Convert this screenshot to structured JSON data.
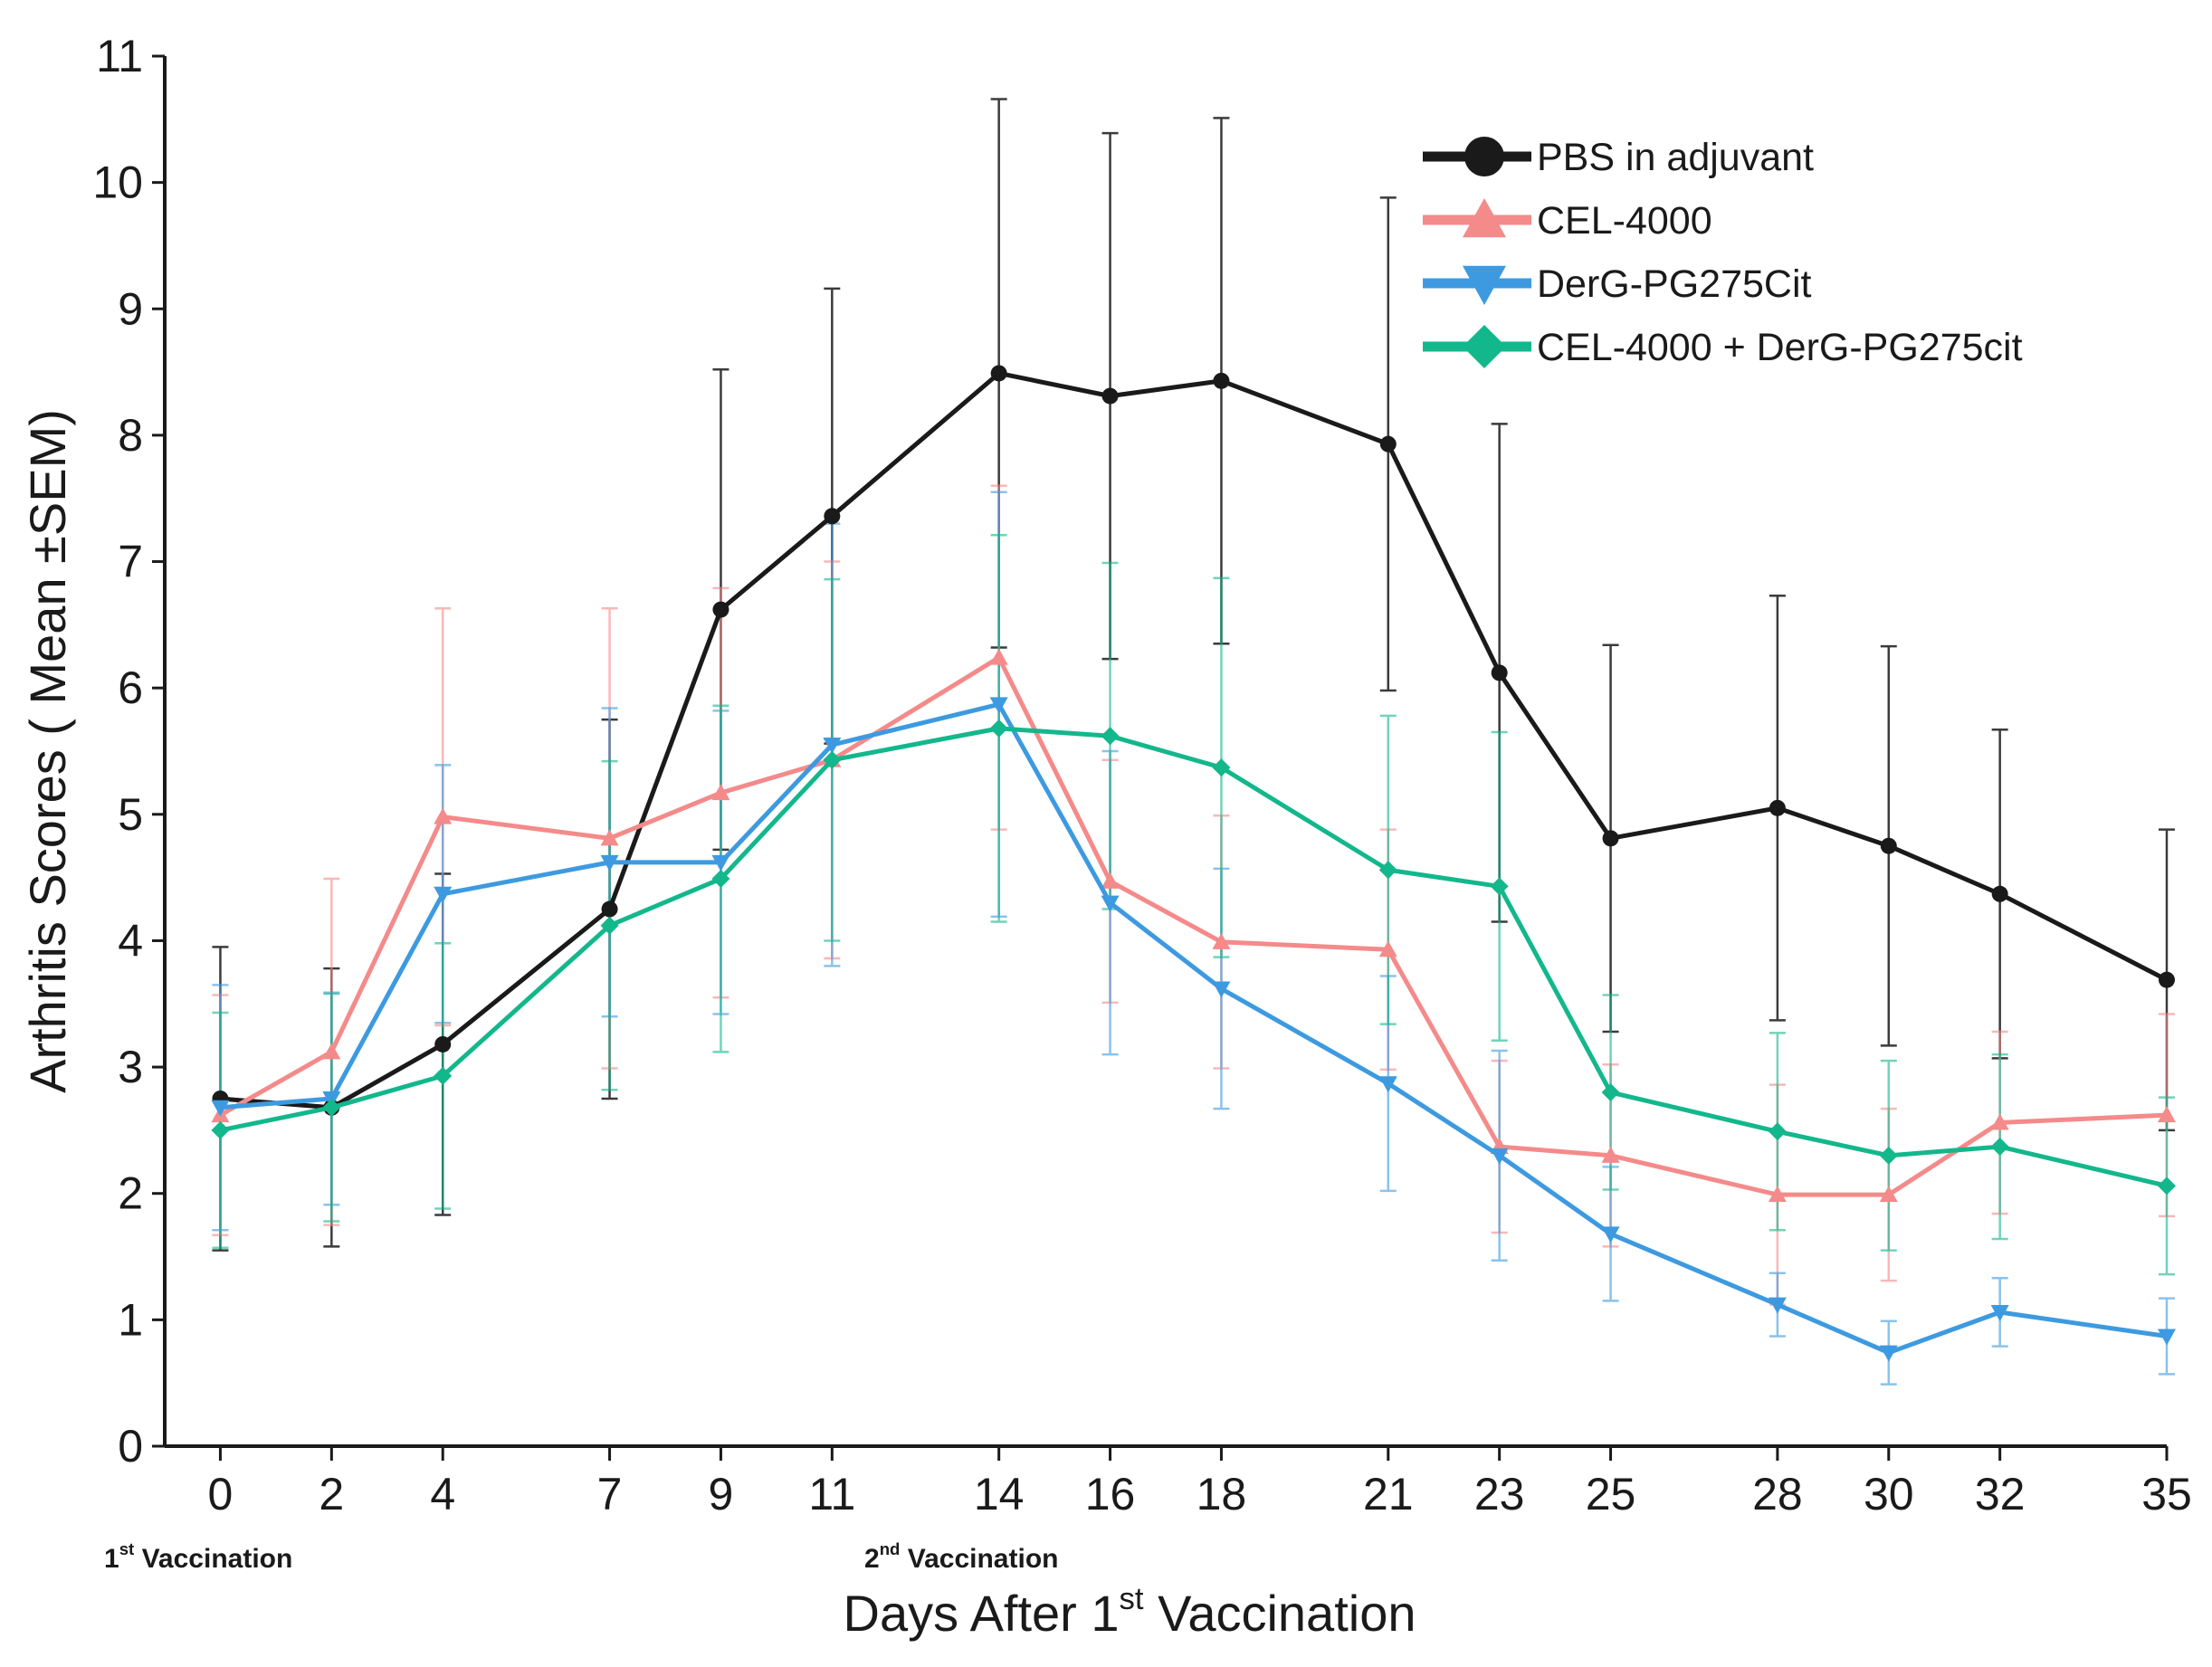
{
  "chart_data": {
    "type": "line",
    "title": "",
    "xlabel": {
      "prefix": "Days After 1",
      "sup": "st",
      "suffix": " Vaccination"
    },
    "ylabel": "Arthritis Scores ( Mean ±SEM)",
    "x": [
      0,
      2,
      4,
      7,
      9,
      11,
      14,
      16,
      18,
      21,
      23,
      25,
      28,
      30,
      32,
      35
    ],
    "xlim": [
      -1,
      35
    ],
    "ylim": [
      0,
      11
    ],
    "xticks": [
      "0",
      "2",
      "4",
      "7",
      "9",
      "11",
      "14",
      "16",
      "18",
      "21",
      "23",
      "25",
      "28",
      "30",
      "32",
      "35"
    ],
    "yticks": [
      "0",
      "1",
      "2",
      "3",
      "4",
      "5",
      "6",
      "7",
      "8",
      "9",
      "10",
      "11"
    ],
    "legend_position": "top-right",
    "grid": false,
    "annotations": [
      {
        "x": 0,
        "prefix": "1",
        "sup": "st",
        "suffix": " Vaccination"
      },
      {
        "x": 14,
        "prefix": "2",
        "sup": "nd",
        "suffix": " Vaccination"
      }
    ],
    "series": [
      {
        "name": "PBS in adjuvant",
        "color": "#1a1a1a",
        "marker": "circle",
        "values": [
          2.75,
          2.68,
          3.18,
          4.25,
          6.62,
          7.36,
          8.49,
          8.31,
          8.43,
          7.93,
          6.12,
          4.81,
          5.05,
          4.75,
          4.37,
          3.69
        ],
        "errors": [
          1.2,
          1.1,
          1.35,
          1.5,
          1.9,
          1.8,
          2.17,
          2.08,
          2.08,
          1.95,
          1.97,
          1.53,
          1.68,
          1.58,
          1.3,
          1.19
        ]
      },
      {
        "name": "CEL-4000",
        "color": "#f48a8a",
        "marker": "triangle-up",
        "values": [
          2.62,
          3.12,
          4.98,
          4.81,
          5.17,
          5.43,
          6.24,
          4.47,
          3.99,
          3.93,
          2.37,
          2.3,
          1.99,
          1.99,
          2.56,
          2.62
        ],
        "errors": [
          0.95,
          1.37,
          1.65,
          1.82,
          1.62,
          1.57,
          1.36,
          0.96,
          1.0,
          0.95,
          0.68,
          0.72,
          0.87,
          0.68,
          0.72,
          0.8
        ]
      },
      {
        "name": "DerG-PG275Cit",
        "color": "#3d9ae0",
        "marker": "triangle-down",
        "values": [
          2.68,
          2.75,
          4.37,
          4.62,
          4.62,
          5.55,
          5.87,
          4.3,
          3.62,
          2.87,
          2.3,
          1.68,
          1.12,
          0.74,
          1.06,
          0.87
        ],
        "errors": [
          0.97,
          0.84,
          1.02,
          1.22,
          1.2,
          1.75,
          1.68,
          1.2,
          0.95,
          0.85,
          0.83,
          0.53,
          0.25,
          0.25,
          0.27,
          0.3
        ]
      },
      {
        "name": "CEL-4000 + DerG-PG275cit",
        "color": "#13b78c",
        "marker": "diamond",
        "values": [
          2.5,
          2.68,
          2.93,
          4.12,
          4.49,
          5.43,
          5.68,
          5.62,
          5.37,
          4.56,
          4.43,
          2.8,
          2.49,
          2.3,
          2.37,
          2.06
        ],
        "errors": [
          0.93,
          0.9,
          1.05,
          1.3,
          1.37,
          1.43,
          1.53,
          1.37,
          1.5,
          1.22,
          1.22,
          0.77,
          0.78,
          0.75,
          0.73,
          0.7
        ]
      }
    ]
  }
}
